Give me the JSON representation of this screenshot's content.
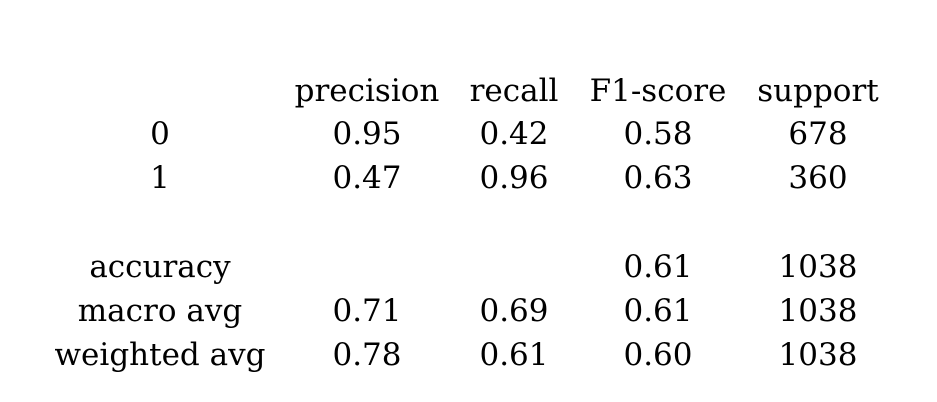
{
  "columns": [
    "precision",
    "recall",
    "F1-score",
    "support"
  ],
  "rows": [
    {
      "label": "0",
      "precision": "0.95",
      "recall": "0.42",
      "f1": "0.58",
      "support": "678"
    },
    {
      "label": "1",
      "precision": "0.47",
      "recall": "0.96",
      "f1": "0.63",
      "support": "360"
    }
  ],
  "summary": [
    {
      "label": "accuracy",
      "precision": "",
      "recall": "",
      "f1": "0.61",
      "support": "1038"
    },
    {
      "label": "macro avg",
      "precision": "0.71",
      "recall": "0.69",
      "f1": "0.61",
      "support": "1038"
    },
    {
      "label": "weighted avg",
      "precision": "0.78",
      "recall": "0.61",
      "f1": "0.60",
      "support": "1038"
    }
  ]
}
